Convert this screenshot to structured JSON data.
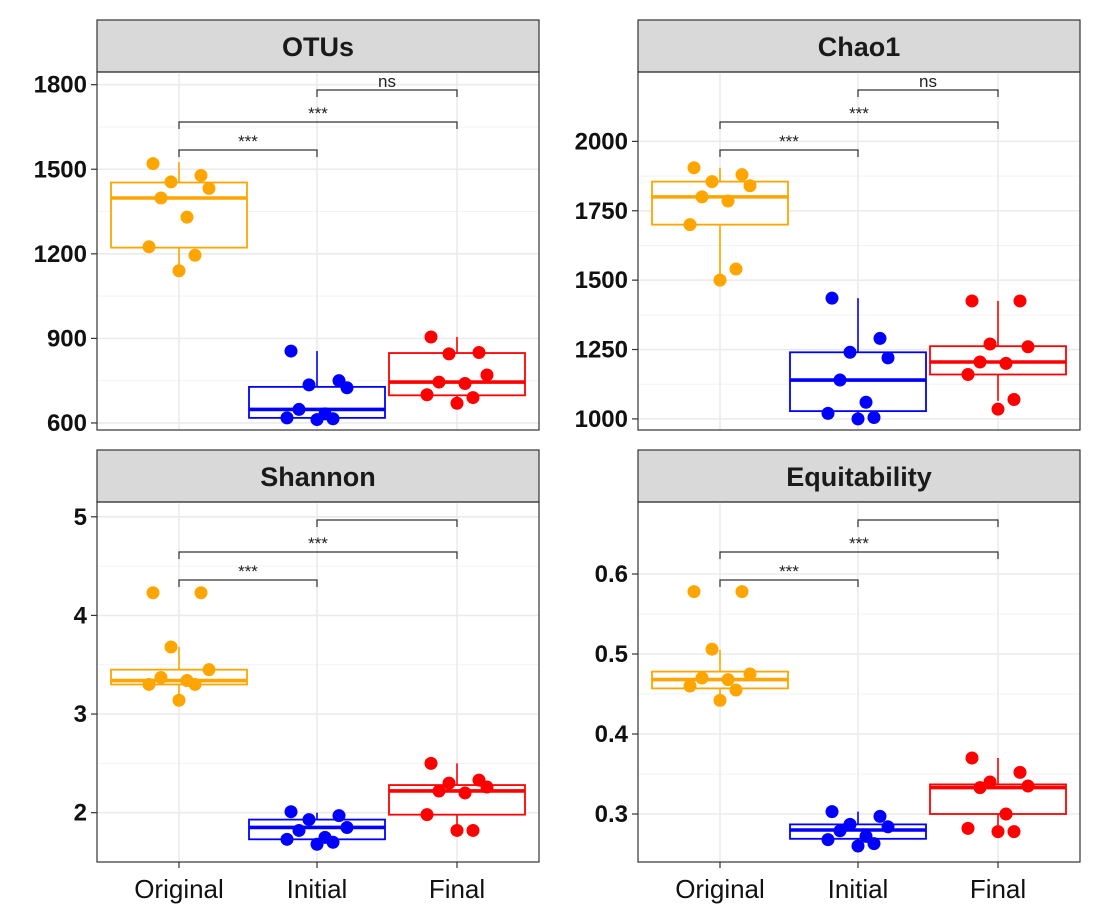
{
  "figure_title": "",
  "colors": {
    "Original": "#FFA500",
    "Initial": "#0000FF",
    "Final": "#FF0000"
  },
  "chart_data": [
    {
      "type": "box",
      "title": "OTUs",
      "categories": [
        "Original",
        "Initial",
        "Final"
      ],
      "ylim": [
        575,
        1845
      ],
      "yticks": [
        600,
        900,
        1200,
        1500,
        1800
      ],
      "ytick_labels": [
        "600",
        "900",
        "1200",
        "1500",
        "1800"
      ],
      "boxes": [
        {
          "group": "Original",
          "min": 1140,
          "q1": 1222,
          "median": 1398,
          "q3": 1453,
          "max": 1525
        },
        {
          "group": "Initial",
          "min": 612,
          "q1": 618,
          "median": 648,
          "q3": 728,
          "max": 855
        },
        {
          "group": "Final",
          "min": 670,
          "q1": 698,
          "median": 745,
          "q3": 848,
          "max": 905
        }
      ],
      "points": {
        "Original": [
          1520,
          1478,
          1455,
          1432,
          1398,
          1330,
          1225,
          1195,
          1140
        ],
        "Initial": [
          855,
          750,
          735,
          725,
          648,
          632,
          618,
          615,
          612
        ],
        "Final": [
          905,
          850,
          845,
          770,
          745,
          740,
          700,
          690,
          670
        ]
      },
      "comparisons": [
        {
          "groups": [
            "Original",
            "Initial"
          ],
          "label": "***"
        },
        {
          "groups": [
            "Original",
            "Final"
          ],
          "label": "***"
        },
        {
          "groups": [
            "Initial",
            "Final"
          ],
          "label": "ns"
        }
      ]
    },
    {
      "type": "box",
      "title": "Chao1",
      "categories": [
        "Original",
        "Initial",
        "Final"
      ],
      "ylim": [
        960,
        2250
      ],
      "yticks": [
        1000,
        1250,
        1500,
        1750,
        2000
      ],
      "ytick_labels": [
        "1000",
        "1250",
        "1500",
        "1750",
        "2000"
      ],
      "boxes": [
        {
          "group": "Original",
          "min": 1500,
          "q1": 1700,
          "median": 1800,
          "q3": 1855,
          "max": 1905
        },
        {
          "group": "Initial",
          "min": 1000,
          "q1": 1028,
          "median": 1140,
          "q3": 1240,
          "max": 1435
        },
        {
          "group": "Final",
          "min": 1065,
          "q1": 1160,
          "median": 1205,
          "q3": 1262,
          "max": 1425
        }
      ],
      "points": {
        "Original": [
          1905,
          1880,
          1855,
          1840,
          1800,
          1785,
          1700,
          1540,
          1500
        ],
        "Initial": [
          1435,
          1290,
          1240,
          1220,
          1140,
          1060,
          1020,
          1005,
          1000
        ],
        "Final": [
          1425,
          1425,
          1270,
          1260,
          1205,
          1200,
          1160,
          1070,
          1035
        ]
      },
      "comparisons": [
        {
          "groups": [
            "Original",
            "Initial"
          ],
          "label": "***"
        },
        {
          "groups": [
            "Original",
            "Final"
          ],
          "label": "***"
        },
        {
          "groups": [
            "Initial",
            "Final"
          ],
          "label": "ns"
        }
      ]
    },
    {
      "type": "box",
      "title": "Shannon",
      "categories": [
        "Original",
        "Initial",
        "Final"
      ],
      "ylim": [
        1.5,
        5.15
      ],
      "yticks": [
        2,
        3,
        4,
        5
      ],
      "ytick_labels": [
        "2",
        "3",
        "4",
        "5"
      ],
      "boxes": [
        {
          "group": "Original",
          "min": 3.14,
          "q1": 3.3,
          "median": 3.34,
          "q3": 3.45,
          "max": 3.68
        },
        {
          "group": "Initial",
          "min": 1.7,
          "q1": 1.73,
          "median": 1.85,
          "q3": 1.93,
          "max": 2.0
        },
        {
          "group": "Final",
          "min": 1.82,
          "q1": 1.98,
          "median": 2.22,
          "q3": 2.28,
          "max": 2.5
        }
      ],
      "points": {
        "Original": [
          4.23,
          4.23,
          3.68,
          3.45,
          3.37,
          3.34,
          3.3,
          3.3,
          3.14
        ],
        "Initial": [
          2.01,
          1.97,
          1.93,
          1.85,
          1.82,
          1.75,
          1.73,
          1.7,
          1.68
        ],
        "Final": [
          2.5,
          2.33,
          2.3,
          2.26,
          2.22,
          2.2,
          1.98,
          1.82,
          1.82
        ]
      },
      "comparisons": [
        {
          "groups": [
            "Original",
            "Initial"
          ],
          "label": "***"
        },
        {
          "groups": [
            "Original",
            "Final"
          ],
          "label": "***"
        },
        {
          "groups": [
            "Initial",
            "Final"
          ],
          "label": ""
        }
      ]
    },
    {
      "type": "box",
      "title": "Equitability",
      "categories": [
        "Original",
        "Initial",
        "Final"
      ],
      "ylim": [
        0.24,
        0.69
      ],
      "yticks": [
        0.3,
        0.4,
        0.5,
        0.6
      ],
      "ytick_labels": [
        "0.3",
        "0.4",
        "0.5",
        "0.6"
      ],
      "boxes": [
        {
          "group": "Original",
          "min": 0.44,
          "q1": 0.457,
          "median": 0.468,
          "q3": 0.478,
          "max": 0.505
        },
        {
          "group": "Initial",
          "min": 0.26,
          "q1": 0.269,
          "median": 0.28,
          "q3": 0.287,
          "max": 0.303
        },
        {
          "group": "Final",
          "min": 0.278,
          "q1": 0.3,
          "median": 0.333,
          "q3": 0.337,
          "max": 0.37
        }
      ],
      "points": {
        "Original": [
          0.578,
          0.578,
          0.506,
          0.475,
          0.47,
          0.468,
          0.46,
          0.455,
          0.442
        ],
        "Initial": [
          0.303,
          0.297,
          0.287,
          0.284,
          0.279,
          0.272,
          0.268,
          0.263,
          0.26
        ],
        "Final": [
          0.37,
          0.352,
          0.34,
          0.335,
          0.333,
          0.3,
          0.282,
          0.278,
          0.278
        ]
      },
      "comparisons": [
        {
          "groups": [
            "Original",
            "Initial"
          ],
          "label": "***"
        },
        {
          "groups": [
            "Original",
            "Final"
          ],
          "label": "***"
        },
        {
          "groups": [
            "Initial",
            "Final"
          ],
          "label": ""
        }
      ]
    }
  ]
}
